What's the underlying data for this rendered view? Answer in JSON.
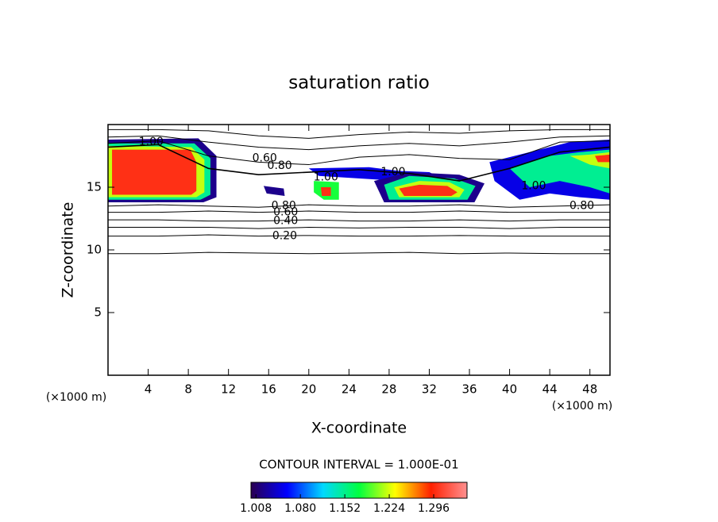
{
  "chart_data": {
    "type": "contour",
    "title": "saturation ratio",
    "x_label": "X-coordinate",
    "y_label": "Z-coordinate",
    "x_unit": "(×1000 m)",
    "y_unit": "(×1000 m)",
    "xlim": [
      0,
      50
    ],
    "ylim": [
      0,
      20
    ],
    "xticks": [
      4,
      8,
      12,
      16,
      20,
      24,
      28,
      32,
      36,
      40,
      44,
      48
    ],
    "yticks": [
      5,
      10,
      15
    ],
    "contour_interval_label": "CONTOUR INTERVAL = 1.000E-01",
    "colormap": [
      "#2a0050",
      "#0000ff",
      "#00d8ff",
      "#00ff40",
      "#ffff00",
      "#ff2000",
      "#ff9090"
    ],
    "clim": [
      1.0,
      1.35
    ],
    "colorbar_ticks": [
      1.008,
      {
        "value": 1.08,
        "label": "1.080"
      },
      1.152,
      1.224,
      1.296
    ],
    "line_color": "#000000",
    "regions": [
      {
        "value": 1.02,
        "x": [
          0,
          9,
          10.8,
          10.8,
          9.5,
          0
        ],
        "y": [
          18.8,
          18.9,
          17.5,
          14.2,
          13.8,
          13.8
        ]
      },
      {
        "value": 1.15,
        "x": [
          0,
          8.6,
          10.2,
          10.2,
          9.2,
          0
        ],
        "y": [
          18.5,
          18.5,
          17.3,
          14.4,
          14.0,
          14.0
        ]
      },
      {
        "value": 1.22,
        "x": [
          0,
          8.3,
          9.6,
          9.6,
          8.8,
          0
        ],
        "y": [
          18.3,
          18.2,
          17.2,
          14.6,
          14.2,
          14.2
        ]
      },
      {
        "value": 1.3,
        "x": [
          0.4,
          8.2,
          8.8,
          8.8,
          8.3,
          0.4
        ],
        "y": [
          18.0,
          18.0,
          17.0,
          14.7,
          14.4,
          14.4
        ]
      },
      {
        "value": 1.05,
        "x": [
          20,
          26,
          29,
          32,
          33,
          27,
          21
        ],
        "y": [
          16.5,
          16.6,
          16.3,
          16.2,
          15.8,
          15.6,
          15.9
        ]
      },
      {
        "value": 1.02,
        "x": [
          26.5,
          30,
          35,
          37.5,
          36.5,
          27.5
        ],
        "y": [
          15.5,
          16.2,
          16.0,
          15.3,
          13.8,
          13.8
        ]
      },
      {
        "value": 1.15,
        "x": [
          27.5,
          30,
          34.5,
          36.6,
          35.8,
          28
        ],
        "y": [
          15.2,
          15.9,
          15.7,
          15.1,
          14.0,
          14.0
        ]
      },
      {
        "value": 1.22,
        "x": [
          28.5,
          31,
          34,
          35.5,
          35,
          29
        ],
        "y": [
          15.0,
          15.5,
          15.4,
          14.8,
          14.2,
          14.2
        ]
      },
      {
        "value": 1.3,
        "x": [
          29,
          31,
          33.8,
          34.8,
          34.2,
          29.5
        ],
        "y": [
          14.9,
          15.2,
          15.1,
          14.6,
          14.3,
          14.3
        ]
      },
      {
        "value": 1.18,
        "x": [
          20.5,
          23,
          23,
          21.5,
          20.5
        ],
        "y": [
          15.5,
          15.4,
          14.0,
          14.0,
          14.6
        ]
      },
      {
        "value": 1.3,
        "x": [
          21.2,
          22.2,
          22.2,
          21.3
        ],
        "y": [
          15.0,
          15.0,
          14.3,
          14.3
        ]
      },
      {
        "value": 1.02,
        "x": [
          15.5,
          17.5,
          17.6,
          15.8
        ],
        "y": [
          15.1,
          14.9,
          14.3,
          14.5
        ]
      },
      {
        "value": 1.05,
        "x": [
          38,
          42,
          46,
          50,
          50,
          47,
          44,
          41,
          38.5
        ],
        "y": [
          17.0,
          17.8,
          18.6,
          18.8,
          14.0,
          14.2,
          14.5,
          14.0,
          15.5
        ]
      },
      {
        "value": 1.15,
        "x": [
          40,
          44,
          47,
          50,
          50,
          48,
          45,
          42
        ],
        "y": [
          16.5,
          17.5,
          17.8,
          18.0,
          14.5,
          15.0,
          15.5,
          15.0
        ]
      },
      {
        "value": 1.22,
        "x": [
          46,
          48,
          50,
          50,
          48
        ],
        "y": [
          17.5,
          17.6,
          17.8,
          16.5,
          16.8
        ]
      },
      {
        "value": 1.3,
        "x": [
          48.5,
          50,
          50,
          48.8
        ],
        "y": [
          17.5,
          17.6,
          17.0,
          17.0
        ]
      }
    ],
    "contours": [
      {
        "level": 0.1,
        "x": [
          0,
          5,
          10,
          15,
          20,
          25,
          30,
          35,
          40,
          45,
          50
        ],
        "y": [
          9.7,
          9.7,
          9.8,
          9.75,
          9.7,
          9.75,
          9.8,
          9.7,
          9.75,
          9.7,
          9.7
        ]
      },
      {
        "level": 0.2,
        "x": [
          0,
          5,
          10,
          15,
          20,
          25,
          30,
          35,
          40,
          45,
          50
        ],
        "y": [
          11.1,
          11.1,
          11.2,
          11.1,
          11.15,
          11.1,
          11.1,
          11.15,
          11.1,
          11.1,
          11.1
        ]
      },
      {
        "level": 0.3,
        "x": [
          0,
          5,
          10,
          15,
          20,
          25,
          30,
          35,
          40,
          45,
          50
        ],
        "y": [
          11.8,
          11.8,
          11.8,
          11.7,
          11.8,
          11.75,
          11.8,
          11.8,
          11.7,
          11.8,
          11.8
        ]
      },
      {
        "level": 0.4,
        "x": [
          0,
          5,
          10,
          15,
          20,
          25,
          30,
          35,
          40,
          45,
          50
        ],
        "y": [
          12.4,
          12.4,
          12.3,
          12.3,
          12.4,
          12.3,
          12.3,
          12.4,
          12.3,
          12.4,
          12.4
        ]
      },
      {
        "level": 0.6,
        "x": [
          0,
          5,
          10,
          15,
          20,
          25,
          30,
          35,
          40,
          45,
          50
        ],
        "y": [
          13.0,
          13.0,
          13.1,
          13.0,
          13.1,
          13.0,
          13.0,
          13.1,
          13.0,
          13.0,
          13.0
        ]
      },
      {
        "level": 0.8,
        "x": [
          0,
          5,
          10,
          15,
          20,
          25,
          30,
          35,
          40,
          45,
          50
        ],
        "y": [
          13.5,
          13.6,
          13.5,
          13.4,
          13.6,
          13.5,
          13.5,
          13.6,
          13.4,
          13.5,
          13.6
        ]
      },
      {
        "level": 1.0,
        "x": [
          0,
          5,
          10,
          15,
          20,
          25,
          30,
          35,
          40,
          45,
          50
        ],
        "y": [
          18.2,
          18.4,
          16.5,
          16.0,
          16.2,
          16.4,
          16.1,
          15.5,
          16.5,
          17.8,
          18.2
        ]
      },
      {
        "level": 0.8,
        "x": [
          0,
          5,
          10,
          15,
          20,
          25,
          30,
          35,
          40,
          45,
          50
        ],
        "y": [
          18.5,
          18.7,
          17.5,
          17.0,
          16.8,
          17.4,
          17.6,
          17.3,
          17.2,
          18.6,
          18.7
        ]
      },
      {
        "level": 0.6,
        "x": [
          0,
          5,
          10,
          15,
          20,
          25,
          30,
          35,
          40,
          45,
          50
        ],
        "y": [
          19.0,
          19.1,
          18.6,
          18.2,
          18.0,
          18.3,
          18.5,
          18.3,
          18.6,
          19.0,
          19.1
        ]
      },
      {
        "level": 0.4,
        "x": [
          0,
          5,
          10,
          15,
          20,
          25,
          30,
          35,
          40,
          45,
          50
        ],
        "y": [
          19.6,
          19.6,
          19.5,
          19.1,
          18.9,
          19.2,
          19.4,
          19.3,
          19.5,
          19.6,
          19.6
        ]
      }
    ],
    "contour_labels": [
      {
        "x": 4.3,
        "y": 18.6,
        "label": "1.00"
      },
      {
        "x": 15.6,
        "y": 17.3,
        "label": "0.60"
      },
      {
        "x": 17.1,
        "y": 16.7,
        "label": "0.80"
      },
      {
        "x": 21.7,
        "y": 15.8,
        "label": "1.00"
      },
      {
        "x": 28.4,
        "y": 16.2,
        "label": "1.00"
      },
      {
        "x": 17.5,
        "y": 13.5,
        "label": "0.80"
      },
      {
        "x": 17.7,
        "y": 13.0,
        "label": "0.60"
      },
      {
        "x": 17.7,
        "y": 12.3,
        "label": "0.40"
      },
      {
        "x": 17.6,
        "y": 11.1,
        "label": "0.20"
      },
      {
        "x": 42.4,
        "y": 15.1,
        "label": "1.00"
      },
      {
        "x": 47.2,
        "y": 13.5,
        "label": "0.80"
      }
    ]
  }
}
